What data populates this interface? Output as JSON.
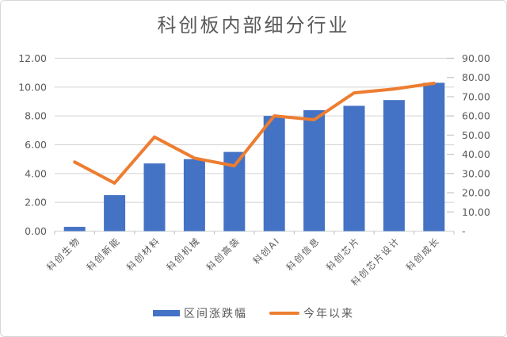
{
  "chart_data": {
    "type": "combo",
    "title": "科创板内部细分行业",
    "categories": [
      "科创生物",
      "科创新能",
      "科创材料",
      "科创机械",
      "科创高装",
      "科创AI",
      "科创信息",
      "科创芯片",
      "科创芯片设计",
      "科创成长"
    ],
    "series": [
      {
        "name": "区间涨跌幅",
        "kind": "bar",
        "axis": "left",
        "color": "#4472C4",
        "values": [
          0.3,
          2.5,
          4.7,
          5.0,
          5.5,
          8.0,
          8.4,
          8.7,
          9.1,
          10.3
        ]
      },
      {
        "name": "今年以来",
        "kind": "line",
        "axis": "right",
        "color": "#ED7D31",
        "values": [
          36,
          25,
          49,
          38,
          34,
          60,
          58,
          72,
          74,
          77
        ]
      }
    ],
    "left_axis": {
      "min": 0,
      "max": 12,
      "step": 2,
      "labels": [
        "0.00",
        "2.00",
        "4.00",
        "6.00",
        "8.00",
        "10.00",
        "12.00"
      ]
    },
    "right_axis": {
      "min": 0,
      "max": 90,
      "step": 10,
      "labels": [
        "-",
        "10.00",
        "20.00",
        "30.00",
        "40.00",
        "50.00",
        "60.00",
        "70.00",
        "80.00",
        "90.00"
      ]
    },
    "grid": true,
    "legend_position": "bottom",
    "colors": {
      "grid": "#D9D9D9",
      "tick": "#C6C6C6",
      "axis_text": "#595959",
      "title_text": "#595959"
    }
  }
}
